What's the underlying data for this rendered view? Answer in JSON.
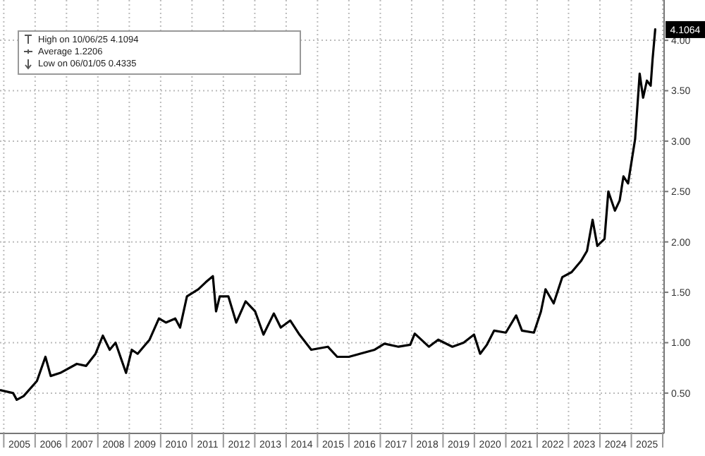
{
  "chart_data": {
    "type": "line",
    "x": [
      "2004-11-18",
      "2005-04-20",
      "2005-06-01",
      "2005-08-20",
      "2006-01-22",
      "2006-05-01",
      "2006-07-01",
      "2006-10-20",
      "2007-05-01",
      "2007-08-18",
      "2007-12-05",
      "2008-02-28",
      "2008-05-18",
      "2008-07-25",
      "2008-11-24",
      "2009-01-30",
      "2009-04-08",
      "2009-08-25",
      "2009-12-12",
      "2010-03-03",
      "2010-06-20",
      "2010-08-15",
      "2010-11-03",
      "2011-03-15",
      "2011-06-10",
      "2011-09-01",
      "2011-10-08",
      "2011-11-20",
      "2012-02-28",
      "2012-05-30",
      "2012-09-16",
      "2013-01-05",
      "2013-04-12",
      "2013-08-10",
      "2013-10-30",
      "2014-02-18",
      "2014-06-05",
      "2014-10-20",
      "2015-05-01",
      "2015-08-18",
      "2016-01-01",
      "2016-10-27",
      "2017-02-18",
      "2017-08-01",
      "2017-12-15",
      "2018-02-06",
      "2018-07-20",
      "2018-11-06",
      "2019-04-20",
      "2019-08-28",
      "2019-12-28",
      "2020-03-08",
      "2020-05-26",
      "2020-08-18",
      "2021-01-01",
      "2021-05-01",
      "2021-07-08",
      "2021-11-24",
      "2022-02-14",
      "2022-04-08",
      "2022-07-12",
      "2022-10-20",
      "2023-02-06",
      "2023-05-26",
      "2023-08-04",
      "2023-10-08",
      "2023-12-02",
      "2024-02-24",
      "2024-04-08",
      "2024-06-24",
      "2024-08-18",
      "2024-10-01",
      "2024-11-24",
      "2025-02-14",
      "2025-04-08",
      "2025-05-18",
      "2025-07-01",
      "2025-08-14",
      "2025-09-05",
      "2025-10-06",
      "2025-10-07"
    ],
    "series": [
      {
        "color": "#000000",
        "values": [
          0.53,
          0.5,
          0.4335,
          0.47,
          0.62,
          0.86,
          0.67,
          0.7,
          0.79,
          0.77,
          0.89,
          1.07,
          0.93,
          1.0,
          0.7,
          0.93,
          0.89,
          1.03,
          1.24,
          1.2,
          1.24,
          1.15,
          1.46,
          1.53,
          1.6,
          1.66,
          1.31,
          1.46,
          1.46,
          1.2,
          1.41,
          1.31,
          1.08,
          1.29,
          1.15,
          1.22,
          1.08,
          0.93,
          0.96,
          0.86,
          0.86,
          0.93,
          0.99,
          0.96,
          0.98,
          1.09,
          0.96,
          1.03,
          0.96,
          1.0,
          1.08,
          0.89,
          0.98,
          1.12,
          1.1,
          1.27,
          1.12,
          1.1,
          1.31,
          1.53,
          1.39,
          1.65,
          1.7,
          1.81,
          1.91,
          2.22,
          1.96,
          2.03,
          2.5,
          2.31,
          2.41,
          2.65,
          2.58,
          3.02,
          3.67,
          3.43,
          3.6,
          3.55,
          3.81,
          4.1094,
          4.1064
        ]
      }
    ],
    "xlim": [
      "2004-11-18",
      "2026-01-01"
    ],
    "xticks": [
      {
        "value": "2005-01-01",
        "label": null
      },
      {
        "value": "2005-07-02",
        "label": "2005"
      },
      {
        "value": "2006-01-01",
        "label": null
      },
      {
        "value": "2006-07-02",
        "label": "2006"
      },
      {
        "value": "2007-01-01",
        "label": null
      },
      {
        "value": "2007-07-02",
        "label": "2007"
      },
      {
        "value": "2008-01-01",
        "label": null
      },
      {
        "value": "2008-07-02",
        "label": "2008"
      },
      {
        "value": "2009-01-01",
        "label": null
      },
      {
        "value": "2009-07-02",
        "label": "2009"
      },
      {
        "value": "2010-01-01",
        "label": null
      },
      {
        "value": "2010-07-02",
        "label": "2010"
      },
      {
        "value": "2011-01-01",
        "label": null
      },
      {
        "value": "2011-07-02",
        "label": "2011"
      },
      {
        "value": "2012-01-01",
        "label": null
      },
      {
        "value": "2012-07-02",
        "label": "2012"
      },
      {
        "value": "2013-01-01",
        "label": null
      },
      {
        "value": "2013-07-02",
        "label": "2013"
      },
      {
        "value": "2014-01-01",
        "label": null
      },
      {
        "value": "2014-07-02",
        "label": "2014"
      },
      {
        "value": "2015-01-01",
        "label": null
      },
      {
        "value": "2015-07-02",
        "label": "2015"
      },
      {
        "value": "2016-01-01",
        "label": null
      },
      {
        "value": "2016-07-02",
        "label": "2016"
      },
      {
        "value": "2017-01-01",
        "label": null
      },
      {
        "value": "2017-07-02",
        "label": "2017"
      },
      {
        "value": "2018-01-01",
        "label": null
      },
      {
        "value": "2018-07-02",
        "label": "2018"
      },
      {
        "value": "2019-01-01",
        "label": null
      },
      {
        "value": "2019-07-02",
        "label": "2019"
      },
      {
        "value": "2020-01-01",
        "label": null
      },
      {
        "value": "2020-07-02",
        "label": "2020"
      },
      {
        "value": "2021-01-01",
        "label": null
      },
      {
        "value": "2021-07-02",
        "label": "2021"
      },
      {
        "value": "2022-01-01",
        "label": null
      },
      {
        "value": "2022-07-02",
        "label": "2022"
      },
      {
        "value": "2023-01-01",
        "label": null
      },
      {
        "value": "2023-07-02",
        "label": "2023"
      },
      {
        "value": "2024-01-01",
        "label": null
      },
      {
        "value": "2024-07-02",
        "label": "2024"
      },
      {
        "value": "2025-01-01",
        "label": null
      },
      {
        "value": "2025-07-02",
        "label": "2025"
      },
      {
        "value": "2026-01-01",
        "label": null
      }
    ],
    "ylim": [
      0.1,
      4.4
    ],
    "yticks": [
      {
        "value": 0.5,
        "label": "0.50"
      },
      {
        "value": 1,
        "label": "1.00"
      },
      {
        "value": 1.5,
        "label": "1.50"
      },
      {
        "value": 2,
        "label": "2.00"
      },
      {
        "value": 2.5,
        "label": "2.50"
      },
      {
        "value": 3,
        "label": "3.00"
      },
      {
        "value": 3.5,
        "label": "3.50"
      },
      {
        "value": 4,
        "label": "4.00"
      }
    ],
    "grid": true,
    "annotations": [
      {
        "text": "4.1064",
        "x": "2025-10-07",
        "y": 4.1064
      },
      "High on 10/06/25 4.1094",
      "Average 1.2206",
      "Low on 06/01/05 0.4335"
    ]
  }
}
